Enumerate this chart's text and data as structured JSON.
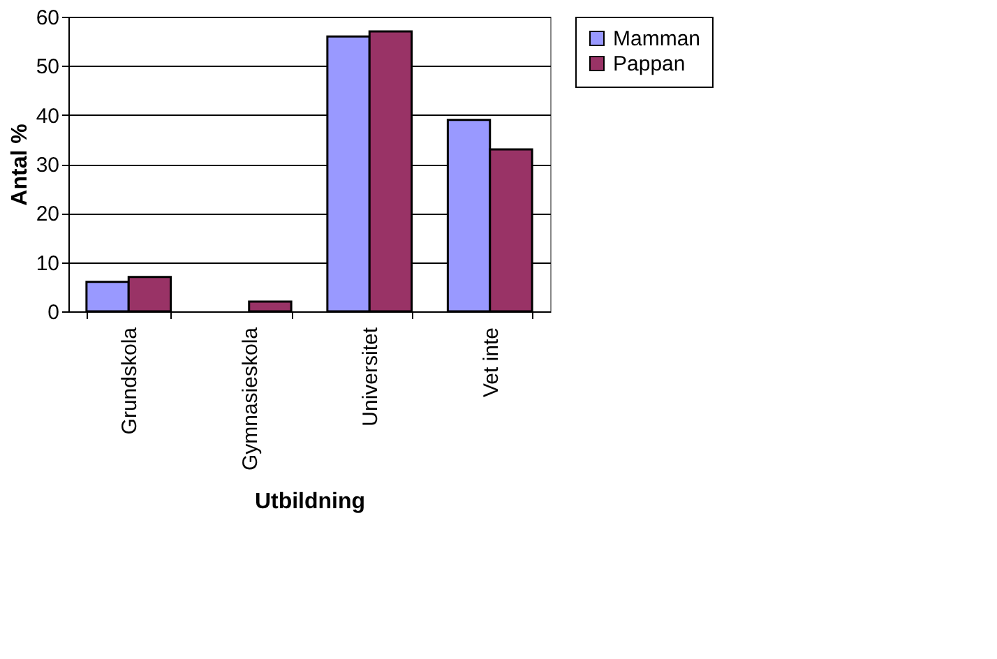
{
  "chart_data": {
    "type": "bar",
    "xlabel": "Utbildning",
    "ylabel": "Antal %",
    "categories": [
      "Grundskola",
      "Gymnasieskola",
      "Universitet",
      "Vet inte"
    ],
    "series": [
      {
        "name": "Mamman",
        "color": "#9999ff",
        "values": [
          6,
          null,
          56,
          39
        ]
      },
      {
        "name": "Pappan",
        "color": "#993366",
        "values": [
          7,
          2,
          57,
          33
        ]
      }
    ],
    "ylim": [
      0,
      60
    ],
    "yticks": [
      0,
      10,
      20,
      30,
      40,
      50,
      60
    ],
    "grid": "y",
    "legend": "right"
  }
}
